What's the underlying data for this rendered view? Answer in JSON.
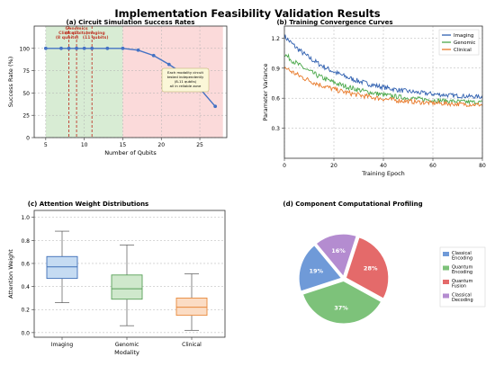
{
  "figure_title": "Implementation Feasibility Validation Results",
  "colors": {
    "line": "#4472c4",
    "imaging": "#3060b0",
    "genomic": "#4aa84a",
    "clinical": "#e87a2a",
    "green_zone": "#d8ecd4",
    "red_zone": "#fbdada",
    "vline": "#c0392b",
    "pie": [
      "#6f9ad8",
      "#7dc27a",
      "#e46a6a",
      "#b48cd0"
    ]
  },
  "chart_data": [
    {
      "type": "line",
      "title": "(a) Circuit Simulation Success Rates",
      "xlabel": "Number of Qubits",
      "ylabel": "Success Rate (%)",
      "xlim": [
        3.5,
        28.5
      ],
      "ylim": [
        0,
        125
      ],
      "xticks": [
        5,
        10,
        15,
        20,
        25
      ],
      "yticks": [
        0,
        25,
        50,
        75,
        100
      ],
      "x": [
        5,
        7,
        8,
        9,
        10,
        11,
        13,
        15,
        17,
        19,
        21,
        24,
        27
      ],
      "y": [
        100,
        100,
        100,
        100,
        100,
        100,
        100,
        100,
        98,
        92,
        82,
        65,
        35
      ],
      "green_zone": [
        5,
        15
      ],
      "red_zone": [
        15,
        28
      ],
      "vlines": [
        {
          "x": 8,
          "label": "Clinical\n(8 qubits)"
        },
        {
          "x": 9,
          "label": "Genomics\n(9 qubits)"
        },
        {
          "x": 11,
          "label": "Imaging\n(11 qubits)"
        }
      ],
      "annotation": "Each modality circuit\ntested independently\n(8-11 qubits)\nall in reliable zone",
      "grid": true
    },
    {
      "type": "line",
      "title": "(b) Training Convergence Curves",
      "xlabel": "Training Epoch",
      "ylabel": "Parameter Variance",
      "xlim": [
        0,
        80
      ],
      "ylim": [
        0,
        1.32
      ],
      "xticks": [
        0,
        20,
        40,
        60,
        80
      ],
      "yticks": [
        0.3,
        0.6,
        0.9,
        1.2
      ],
      "legend": "top-right",
      "series": [
        {
          "name": "Imaging",
          "start": 1.22,
          "end": 0.59
        },
        {
          "name": "Genomic",
          "start": 1.04,
          "end": 0.54
        },
        {
          "name": "Clinical",
          "start": 0.91,
          "end": 0.52
        }
      ],
      "grid": true
    },
    {
      "type": "box",
      "title": "(c) Attention Weight Distributions",
      "xlabel": "Modality",
      "ylabel": "Attention Weight",
      "ylim": [
        -0.04,
        1.06
      ],
      "yticks": [
        0.0,
        0.2,
        0.4,
        0.6,
        0.8,
        1.0
      ],
      "categories": [
        "Imaging",
        "Genomic",
        "Clinical"
      ],
      "boxes": [
        {
          "min": 0.26,
          "q1": 0.47,
          "median": 0.57,
          "q3": 0.66,
          "max": 0.88
        },
        {
          "min": 0.06,
          "q1": 0.29,
          "median": 0.38,
          "q3": 0.5,
          "max": 0.76
        },
        {
          "min": 0.02,
          "q1": 0.15,
          "median": 0.22,
          "q3": 0.3,
          "max": 0.51
        }
      ],
      "grid": true
    },
    {
      "type": "pie",
      "title": "(d) Component Computational Profiling",
      "legend": "right",
      "slices": [
        {
          "label": "Classical\nEncoding",
          "value": 19,
          "text": "19%"
        },
        {
          "label": "Quantum\nEncoding",
          "value": 37,
          "text": "37%"
        },
        {
          "label": "Quantum\nFusion",
          "value": 28,
          "text": "28%"
        },
        {
          "label": "Classical\nDecoding",
          "value": 16,
          "text": "16%"
        }
      ]
    }
  ]
}
